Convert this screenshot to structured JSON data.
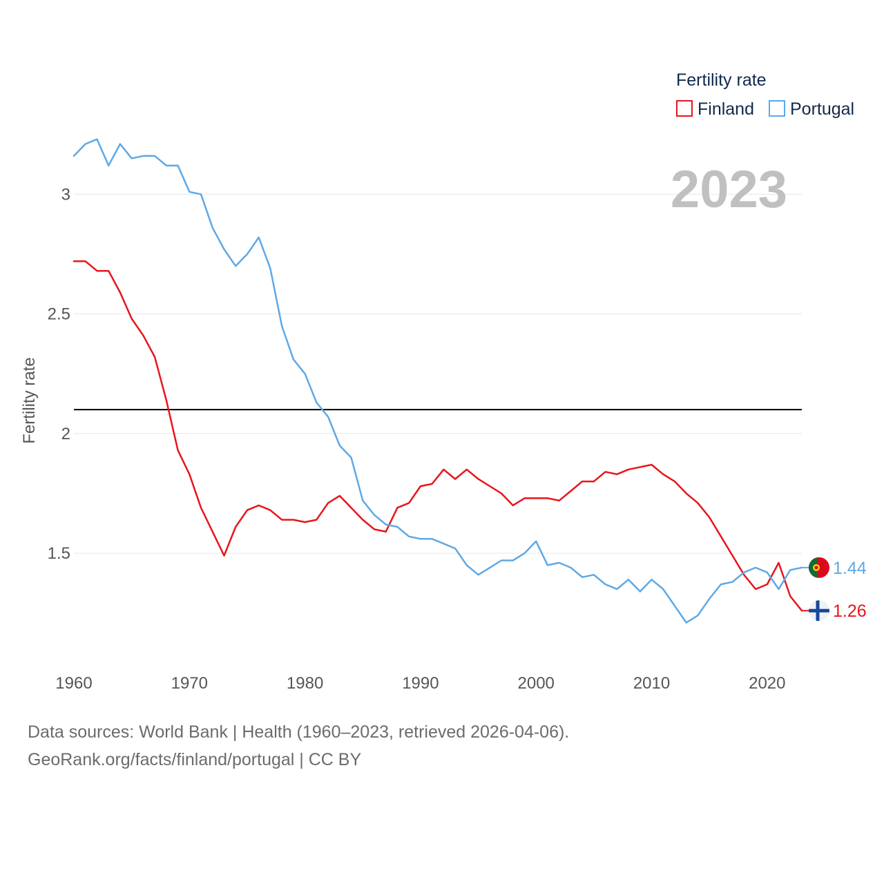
{
  "chart_data": {
    "type": "line",
    "year_label": "2023",
    "ylabel": "Fertility rate",
    "xlim": [
      1960,
      2023
    ],
    "ylim": [
      1.05,
      3.35
    ],
    "xticks": [
      1960,
      1970,
      1980,
      1990,
      2000,
      2010,
      2020
    ],
    "yticks": [
      1.5,
      2,
      2.5,
      3
    ],
    "reference_line": 2.1,
    "legend": {
      "title": "Fertility rate",
      "position": "top-right"
    },
    "x": [
      1960,
      1961,
      1962,
      1963,
      1964,
      1965,
      1966,
      1967,
      1968,
      1969,
      1970,
      1971,
      1972,
      1973,
      1974,
      1975,
      1976,
      1977,
      1978,
      1979,
      1980,
      1981,
      1982,
      1983,
      1984,
      1985,
      1986,
      1987,
      1988,
      1989,
      1990,
      1991,
      1992,
      1993,
      1994,
      1995,
      1996,
      1997,
      1998,
      1999,
      2000,
      2001,
      2002,
      2003,
      2004,
      2005,
      2006,
      2007,
      2008,
      2009,
      2010,
      2011,
      2012,
      2013,
      2014,
      2015,
      2016,
      2017,
      2018,
      2019,
      2020,
      2021,
      2022,
      2023
    ],
    "series": [
      {
        "name": "Finland",
        "color": "#e8141a",
        "end_label": "1.26",
        "flag": "finland-flag-icon",
        "values": [
          2.72,
          2.72,
          2.68,
          2.68,
          2.59,
          2.48,
          2.41,
          2.32,
          2.14,
          1.93,
          1.83,
          1.69,
          1.59,
          1.49,
          1.61,
          1.68,
          1.7,
          1.68,
          1.64,
          1.64,
          1.63,
          1.64,
          1.71,
          1.74,
          1.69,
          1.64,
          1.6,
          1.59,
          1.69,
          1.71,
          1.78,
          1.79,
          1.85,
          1.81,
          1.85,
          1.81,
          1.78,
          1.75,
          1.7,
          1.73,
          1.73,
          1.73,
          1.72,
          1.76,
          1.8,
          1.8,
          1.84,
          1.83,
          1.85,
          1.86,
          1.87,
          1.83,
          1.8,
          1.75,
          1.71,
          1.65,
          1.57,
          1.49,
          1.41,
          1.35,
          1.37,
          1.46,
          1.32,
          1.26
        ]
      },
      {
        "name": "Portugal",
        "color": "#5ea8e6",
        "end_label": "1.44",
        "flag": "portugal-flag-icon",
        "values": [
          3.16,
          3.21,
          3.23,
          3.12,
          3.21,
          3.15,
          3.16,
          3.16,
          3.12,
          3.12,
          3.01,
          3.0,
          2.86,
          2.77,
          2.7,
          2.75,
          2.82,
          2.69,
          2.45,
          2.31,
          2.25,
          2.13,
          2.07,
          1.95,
          1.9,
          1.72,
          1.66,
          1.62,
          1.61,
          1.57,
          1.56,
          1.56,
          1.54,
          1.52,
          1.45,
          1.41,
          1.44,
          1.47,
          1.47,
          1.5,
          1.55,
          1.45,
          1.46,
          1.44,
          1.4,
          1.41,
          1.37,
          1.35,
          1.39,
          1.34,
          1.39,
          1.35,
          1.28,
          1.21,
          1.24,
          1.31,
          1.37,
          1.38,
          1.42,
          1.44,
          1.42,
          1.35,
          1.43,
          1.44
        ]
      }
    ]
  },
  "footer": {
    "sources": "Data sources: World Bank | Health (1960–2023, retrieved 2026-04-06).",
    "credit": "GeoRank.org/facts/finland/portugal | CC BY"
  }
}
